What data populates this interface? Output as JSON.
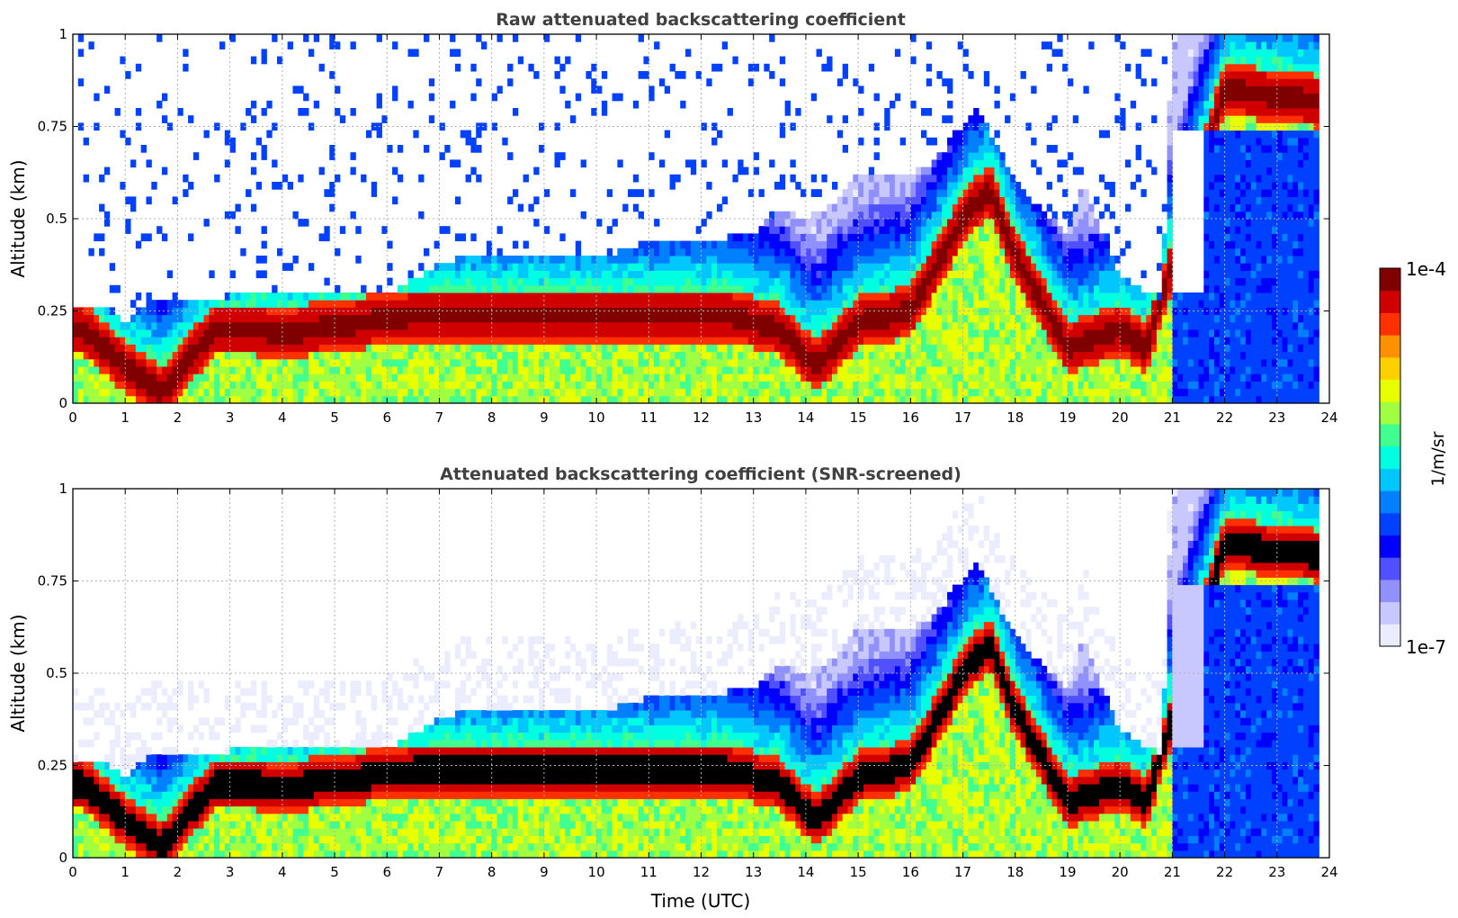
{
  "chart_data": [
    {
      "type": "heatmap",
      "title": "Raw attenuated backscattering coefficient",
      "xlabel": "",
      "ylabel": "Altitude (km)",
      "xlim": [
        0,
        24
      ],
      "ylim": [
        0,
        1
      ],
      "x_ticks": [
        "0",
        "1",
        "2",
        "3",
        "4",
        "5",
        "6",
        "7",
        "8",
        "9",
        "10",
        "11",
        "12",
        "13",
        "14",
        "15",
        "16",
        "17",
        "18",
        "19",
        "20",
        "21",
        "22",
        "23",
        "24"
      ],
      "y_ticks": [
        "0",
        "0.25",
        "0.5",
        "0.75",
        "1"
      ],
      "y_tick_values": [
        0,
        0.25,
        0.5,
        0.75,
        1
      ],
      "grid": true,
      "screened": false,
      "layer_top_km": [
        [
          0.0,
          0.25
        ],
        [
          0.5,
          0.27
        ],
        [
          1.0,
          0.22
        ],
        [
          1.5,
          0.29
        ],
        [
          2.0,
          0.27
        ],
        [
          3.0,
          0.29
        ],
        [
          4.0,
          0.29
        ],
        [
          5.0,
          0.29
        ],
        [
          6.0,
          0.29
        ],
        [
          7.0,
          0.38
        ],
        [
          8.0,
          0.41
        ],
        [
          9.0,
          0.4
        ],
        [
          10.0,
          0.4
        ],
        [
          10.8,
          0.42
        ],
        [
          11.0,
          0.45
        ],
        [
          12.0,
          0.44
        ],
        [
          13.0,
          0.46
        ],
        [
          13.5,
          0.53
        ],
        [
          14.0,
          0.5
        ],
        [
          14.5,
          0.54
        ],
        [
          15.0,
          0.62
        ],
        [
          15.5,
          0.63
        ],
        [
          16.0,
          0.62
        ],
        [
          16.5,
          0.66
        ],
        [
          17.0,
          0.76
        ],
        [
          17.3,
          0.8
        ],
        [
          17.7,
          0.68
        ],
        [
          18.0,
          0.6
        ],
        [
          18.3,
          0.55
        ],
        [
          18.7,
          0.5
        ],
        [
          19.0,
          0.45
        ],
        [
          19.3,
          0.6
        ],
        [
          19.7,
          0.45
        ],
        [
          20.0,
          0.35
        ],
        [
          20.5,
          0.3
        ],
        [
          20.8,
          0.28
        ],
        [
          21.0,
          1.0
        ],
        [
          23.8,
          1.0
        ]
      ],
      "dense_layer_km": [
        [
          0.2,
          0.2
        ],
        [
          1.0,
          0.1
        ],
        [
          1.7,
          0.03
        ],
        [
          2.7,
          0.2
        ],
        [
          3.5,
          0.2
        ],
        [
          4.0,
          0.19
        ],
        [
          6.6,
          0.24
        ],
        [
          11.5,
          0.24
        ],
        [
          12.5,
          0.24
        ],
        [
          13.5,
          0.2
        ],
        [
          14.2,
          0.1
        ],
        [
          15.0,
          0.22
        ],
        [
          16.0,
          0.25
        ],
        [
          17.0,
          0.5
        ],
        [
          17.5,
          0.58
        ],
        [
          18.0,
          0.4
        ],
        [
          19.0,
          0.15
        ],
        [
          20.0,
          0.2
        ],
        [
          20.5,
          0.15
        ],
        [
          22.0,
          0.85
        ],
        [
          23.7,
          0.82
        ]
      ]
    },
    {
      "type": "heatmap",
      "title": "Attenuated backscattering coefficient (SNR-screened)",
      "xlabel": "Time (UTC)",
      "ylabel": "Altitude (km)",
      "xlim": [
        0,
        24
      ],
      "ylim": [
        0,
        1
      ],
      "x_ticks": [
        "0",
        "1",
        "2",
        "3",
        "4",
        "5",
        "6",
        "7",
        "8",
        "9",
        "10",
        "11",
        "12",
        "13",
        "14",
        "15",
        "16",
        "17",
        "18",
        "19",
        "20",
        "21",
        "22",
        "23",
        "24"
      ],
      "y_ticks": [
        "0",
        "0.25",
        "0.5",
        "0.75",
        "1"
      ],
      "y_tick_values": [
        0,
        0.25,
        0.5,
        0.75,
        1
      ],
      "grid": true,
      "screened": true
    }
  ],
  "colorbar": {
    "label": "1/m/sr",
    "max_label": "1e-4",
    "min_label": "1e-7",
    "min": 1e-07,
    "max": 0.0001,
    "scale": "log",
    "colors": [
      "#ececff",
      "#c8c8ff",
      "#9090ff",
      "#5050ff",
      "#0000ff",
      "#0040ff",
      "#0080ff",
      "#00c8ff",
      "#00ffe0",
      "#40ff90",
      "#a0ff40",
      "#e8ff00",
      "#ffd000",
      "#ff9000",
      "#ff3000",
      "#d00000",
      "#800000"
    ],
    "saturation_color": "#000000"
  }
}
